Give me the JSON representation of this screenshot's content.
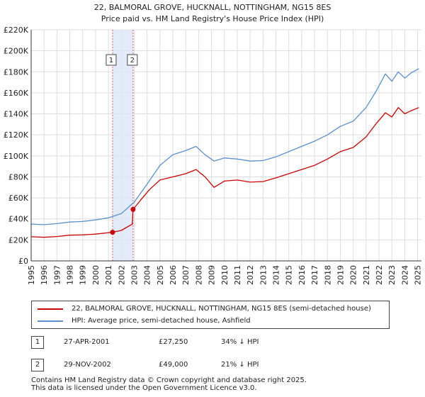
{
  "chart_data": {
    "type": "line",
    "title": "22, BALMORAL GROVE, HUCKNALL, NOTTINGHAM, NG15 8ES",
    "subtitle": "Price paid vs. HM Land Registry's House Price Index (HPI)",
    "xlabel": "",
    "ylabel": "",
    "xlim": [
      1995,
      2025.3
    ],
    "ylim": [
      0,
      220000
    ],
    "grid": true,
    "x_ticks": [
      "1995",
      "1996",
      "1997",
      "1998",
      "1999",
      "2000",
      "2001",
      "2002",
      "2003",
      "2004",
      "2005",
      "2006",
      "2007",
      "2008",
      "2009",
      "2010",
      "2011",
      "2012",
      "2013",
      "2014",
      "2015",
      "2016",
      "2017",
      "2018",
      "2019",
      "2020",
      "2021",
      "2022",
      "2023",
      "2024",
      "2025"
    ],
    "y_ticks": [
      {
        "value": 0,
        "label": "£0"
      },
      {
        "value": 20000,
        "label": "£20K"
      },
      {
        "value": 40000,
        "label": "£40K"
      },
      {
        "value": 60000,
        "label": "£60K"
      },
      {
        "value": 80000,
        "label": "£80K"
      },
      {
        "value": 100000,
        "label": "£100K"
      },
      {
        "value": 120000,
        "label": "£120K"
      },
      {
        "value": 140000,
        "label": "£140K"
      },
      {
        "value": 160000,
        "label": "£160K"
      },
      {
        "value": 180000,
        "label": "£180K"
      },
      {
        "value": 200000,
        "label": "£200K"
      },
      {
        "value": 220000,
        "label": "£220K"
      }
    ],
    "series": [
      {
        "name": "22, BALMORAL GROVE, HUCKNALL, NOTTINGHAM, NG15 8ES (semi-detached house)",
        "color": "#cc0000",
        "points": [
          [
            1995,
            23000
          ],
          [
            1996,
            22500
          ],
          [
            1997,
            23200
          ],
          [
            1998,
            24500
          ],
          [
            1999,
            24800
          ],
          [
            2000,
            25500
          ],
          [
            2001.32,
            27250
          ],
          [
            2002,
            29000
          ],
          [
            2002.85,
            35000
          ],
          [
            2002.91,
            49000
          ],
          [
            2003.5,
            58000
          ],
          [
            2004.2,
            68000
          ],
          [
            2005,
            77000
          ],
          [
            2006,
            80000
          ],
          [
            2007,
            83000
          ],
          [
            2007.8,
            87000
          ],
          [
            2008.5,
            80000
          ],
          [
            2009.2,
            70000
          ],
          [
            2010,
            76000
          ],
          [
            2011,
            77000
          ],
          [
            2012,
            75000
          ],
          [
            2013,
            75500
          ],
          [
            2014,
            79000
          ],
          [
            2015,
            83000
          ],
          [
            2016,
            87000
          ],
          [
            2017,
            91000
          ],
          [
            2018,
            97000
          ],
          [
            2019,
            104000
          ],
          [
            2020,
            108000
          ],
          [
            2021,
            118000
          ],
          [
            2021.8,
            131000
          ],
          [
            2022.5,
            141000
          ],
          [
            2023,
            137000
          ],
          [
            2023.5,
            146000
          ],
          [
            2024,
            140000
          ],
          [
            2024.5,
            143000
          ],
          [
            2025.1,
            146000
          ]
        ]
      },
      {
        "name": "HPI: Average price, semi-detached house, Ashfield",
        "color": "#5b8fce",
        "points": [
          [
            1995,
            35000
          ],
          [
            1996,
            34500
          ],
          [
            1997,
            35500
          ],
          [
            1998,
            37000
          ],
          [
            1999,
            37500
          ],
          [
            2000,
            39000
          ],
          [
            2001,
            41000
          ],
          [
            2002,
            45000
          ],
          [
            2003,
            56000
          ],
          [
            2004,
            73000
          ],
          [
            2005,
            91000
          ],
          [
            2006,
            101000
          ],
          [
            2007,
            105000
          ],
          [
            2007.8,
            109000
          ],
          [
            2008.5,
            101000
          ],
          [
            2009.2,
            95000
          ],
          [
            2010,
            98000
          ],
          [
            2011,
            97000
          ],
          [
            2012,
            95000
          ],
          [
            2013,
            95500
          ],
          [
            2014,
            99000
          ],
          [
            2015,
            104000
          ],
          [
            2016,
            109000
          ],
          [
            2017,
            114000
          ],
          [
            2018,
            120000
          ],
          [
            2019,
            128000
          ],
          [
            2020,
            133000
          ],
          [
            2021,
            146000
          ],
          [
            2021.8,
            162000
          ],
          [
            2022.5,
            178000
          ],
          [
            2023,
            171000
          ],
          [
            2023.5,
            180000
          ],
          [
            2024,
            174000
          ],
          [
            2024.5,
            179000
          ],
          [
            2025.1,
            183000
          ]
        ]
      }
    ],
    "sales": [
      {
        "id": "1",
        "x": 2001.32,
        "price": 27250
      },
      {
        "id": "2",
        "x": 2002.91,
        "price": 49000
      }
    ],
    "shaded_range": [
      2001.32,
      2002.91
    ]
  },
  "legend": {
    "items": [
      {
        "label": "22, BALMORAL GROVE, HUCKNALL, NOTTINGHAM, NG15 8ES (semi-detached house)",
        "color": "#cc0000"
      },
      {
        "label": "HPI: Average price, semi-detached house, Ashfield",
        "color": "#5b8fce"
      }
    ]
  },
  "sales_table": [
    {
      "num": "1",
      "date": "27-APR-2001",
      "price": "£27,250",
      "hpi": "34% ↓ HPI"
    },
    {
      "num": "2",
      "date": "29-NOV-2002",
      "price": "£49,000",
      "hpi": "21% ↓ HPI"
    }
  ],
  "footer": {
    "line1": "Contains HM Land Registry data © Crown copyright and database right 2025.",
    "line2": "This data is licensed under the Open Government Licence v3.0."
  }
}
